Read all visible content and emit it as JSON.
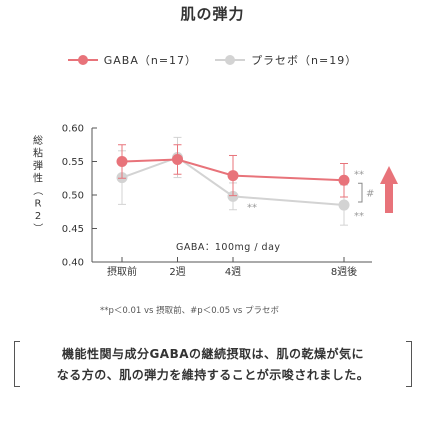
{
  "page": {
    "title": "肌の弾力",
    "conclusion_line1": "機能性関与成分GABAの継続摂取は、肌の乾燥が気に",
    "conclusion_line2": "なる方の、肌の弾力を維持することが示唆されました。"
  },
  "chart_data": {
    "type": "line",
    "title": "肌の弾力",
    "ylabel": "総粘弾性（R2）",
    "xlabel": "",
    "categories": [
      "摂取前",
      "2週",
      "4週",
      "8週後"
    ],
    "x_positions": [
      0,
      2,
      4,
      8
    ],
    "ylim": [
      0.4,
      0.6
    ],
    "yticks": [
      "0.60",
      "0.55",
      "0.50",
      "0.45",
      "0.40"
    ],
    "grid": false,
    "legend_position": "top-center",
    "series": [
      {
        "name": "GABA（n=17）",
        "color": "#e8737a",
        "values": [
          0.55,
          0.553,
          0.529,
          0.522
        ],
        "error": [
          0.025,
          0.022,
          0.03,
          0.025
        ]
      },
      {
        "name": "プラセボ（n=19）",
        "color": "#d3d3d3",
        "values": [
          0.526,
          0.556,
          0.498,
          0.485
        ],
        "error": [
          0.04,
          0.03,
          0.02,
          0.03
        ]
      }
    ],
    "annotations": {
      "dose_label": "GABA：100mg / day",
      "sig_4w_placebo": "**",
      "sig_8w_gaba": "**",
      "sig_8w_placebo": "**",
      "sig_between_groups": "#",
      "footnote": "**p＜0.01 vs 摂取前、#p＜0.05 vs プラセボ"
    },
    "arrow_color": "#e8737a"
  }
}
